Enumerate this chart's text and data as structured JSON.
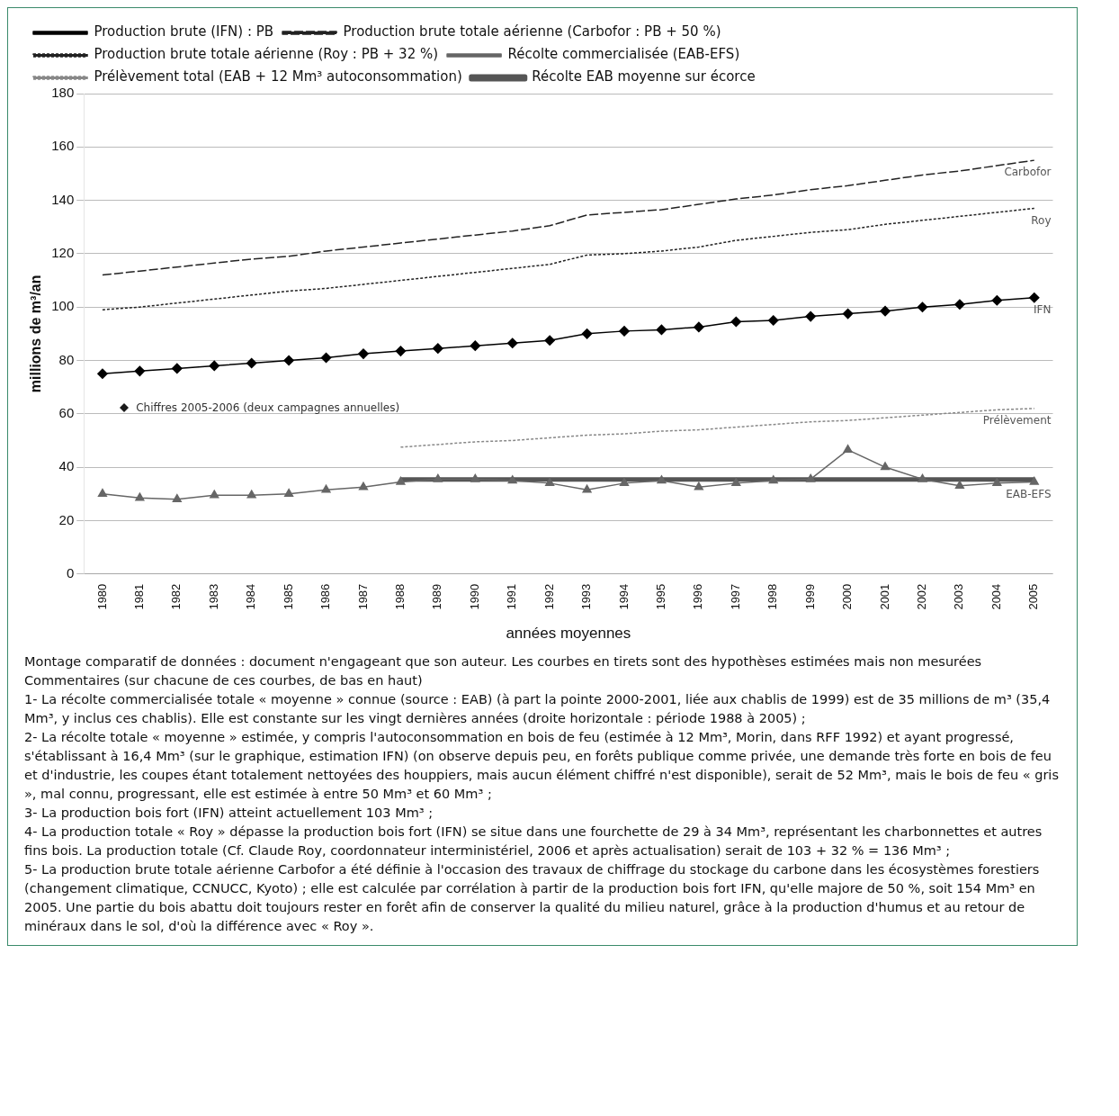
{
  "chart_data": {
    "type": "line",
    "xlabel": "années moyennes",
    "ylabel": "millions de m³/an",
    "categories": [
      "1980",
      "1981",
      "1982",
      "1983",
      "1984",
      "1985",
      "1986",
      "1987",
      "1988",
      "1989",
      "1990",
      "1991",
      "1992",
      "1993",
      "1994",
      "1995",
      "1996",
      "1997",
      "1998",
      "1999",
      "2000",
      "2001",
      "2002",
      "2003",
      "2004",
      "2005"
    ],
    "ylim": [
      0,
      180
    ],
    "yticks": [
      0,
      20,
      40,
      60,
      80,
      100,
      120,
      140,
      160,
      180
    ],
    "grid": "y",
    "legend": "top left",
    "series": [
      {
        "name": "Production brute (IFN) : PB",
        "color": "#000000",
        "marker": "diamond",
        "line_style": "solid",
        "values": [
          75,
          76,
          77,
          78,
          79,
          80,
          81,
          82.5,
          83.5,
          84.5,
          85.5,
          86.5,
          87.5,
          90,
          91,
          91.5,
          92.5,
          94.5,
          95,
          96.5,
          97.5,
          98.5,
          100,
          101,
          102.5,
          103.5
        ]
      },
      {
        "name": "Production brute totale aérienne (Carbofor : PB + 50 %)",
        "color": "#222222",
        "marker": "none",
        "line_style": "dashed",
        "values": [
          112,
          113.5,
          115,
          116.5,
          118,
          119,
          121,
          122.5,
          124,
          125.5,
          127,
          128.5,
          130.5,
          134.5,
          135.5,
          136.5,
          138.5,
          140.5,
          142,
          144,
          145.5,
          147.5,
          149.5,
          151,
          153,
          155
        ]
      },
      {
        "name": "Production brute totale aérienne (Roy : PB + 32 %)",
        "color": "#222222",
        "marker": "none",
        "line_style": "dotted",
        "values": [
          99,
          100,
          101.5,
          103,
          104.5,
          106,
          107,
          108.5,
          110,
          111.5,
          113,
          114.5,
          116,
          119.5,
          120,
          121,
          122.5,
          125,
          126.5,
          128,
          129,
          131,
          132.5,
          134,
          135.5,
          137
        ]
      },
      {
        "name": "Récolte commercialisée (EAB-EFS)",
        "color": "#666666",
        "marker": "triangle",
        "line_style": "solid",
        "values": [
          30,
          28.5,
          28,
          29.5,
          29.5,
          30,
          31.5,
          32.5,
          34.5,
          35.5,
          35.5,
          35,
          34,
          31.5,
          34,
          35,
          32.5,
          34,
          35,
          35.5,
          46.5,
          40,
          35.5,
          33,
          34,
          34.5
        ]
      },
      {
        "name": "Prélèvement total (EAB + 12 Mm³ autoconsommation)",
        "color": "#888888",
        "marker": "none",
        "line_style": "dotted",
        "values": [
          null,
          null,
          null,
          null,
          null,
          null,
          null,
          null,
          47.5,
          48.5,
          49.5,
          50,
          51,
          52,
          52.5,
          53.5,
          54,
          55,
          56,
          57,
          57.5,
          58.5,
          59.5,
          60.5,
          61.5,
          62
        ]
      },
      {
        "name": "Récolte EAB moyenne sur écorce",
        "color": "#555555",
        "marker": "none",
        "line_style": "solid",
        "values": [
          null,
          null,
          null,
          null,
          null,
          null,
          null,
          null,
          35.4,
          35.4,
          35.4,
          35.4,
          35.4,
          35.4,
          35.4,
          35.4,
          35.4,
          35.4,
          35.4,
          35.4,
          35.4,
          35.4,
          35.4,
          35.4,
          35.4,
          35.4
        ]
      }
    ],
    "annotations": [
      {
        "text": "Carbofor",
        "x": "2005",
        "y": 155
      },
      {
        "text": "Roy",
        "x": "2005",
        "y": 137
      },
      {
        "text": "IFN",
        "x": "2005",
        "y": 103.5
      },
      {
        "text": "Prélèvement",
        "x": "2005",
        "y": 62
      },
      {
        "text": "EAB-EFS",
        "x": "2005",
        "y": 34.5
      },
      "Chiffres 2005-2006 (deux campagnes annuelles)",
      "Montage comparatif de données : document n'engageant que son auteur. Les courbes en tirets sont des hypothèses estimées mais non mesurées",
      "Commentaires (sur chacune de ces courbes, de bas en haut)",
      "1- La récolte commercialisée totale « moyenne » connue (source : EAB) (à part la pointe 2000-2001, liée aux chablis de 1999) est de 35 millions de m³ (35,4 Mm³, y inclus ces chablis). Elle est constante sur les vingt dernières années (droite horizontale : période 1988 à 2005) ;",
      "2- La récolte totale « moyenne » estimée, y compris l'autoconsommation en bois de feu (estimée à 12 Mm³, Morin, dans RFF 1992) et ayant progressé, s'établissant à 16,4 Mm³ (sur le graphique, estimation IFN) (on observe depuis peu, en forêts publique comme privée, une demande très forte en bois de feu et d'industrie, les coupes étant totalement nettoyées des houppiers, mais aucun élément chiffré n'est disponible), serait de 52 Mm³, mais le bois de feu « gris », mal connu, progressant, elle est estimée à entre 50 Mm³ et 60 Mm³ ;",
      "3- La production bois fort (IFN) atteint actuellement 103 Mm³ ;",
      "4- La production totale « Roy » dépasse la production bois fort (IFN) se situe dans une fourchette de 29 à 34 Mm³, représentant les charbonnettes et autres fins bois. La production totale (Cf. Claude Roy, coordonnateur interministériel, 2006 et après actualisation) serait de 103 + 32 % = 136 Mm³ ;",
      "5- La production brute totale aérienne Carbofor a été définie à l'occasion des travaux de chiffrage du stockage du carbone dans les écosystèmes forestiers (changement climatique, CCNUCC, Kyoto) ; elle est calculée par corrélation à partir de la production bois fort IFN, qu'elle majore de 50 %, soit 154 Mm³ en 2005. Une partie du bois abattu doit toujours rester en forêt afin de conserver la qualité du milieu naturel, grâce à la production d'humus et au retour de minéraux dans le sol, d'où la différence avec « Roy »."
    ]
  }
}
